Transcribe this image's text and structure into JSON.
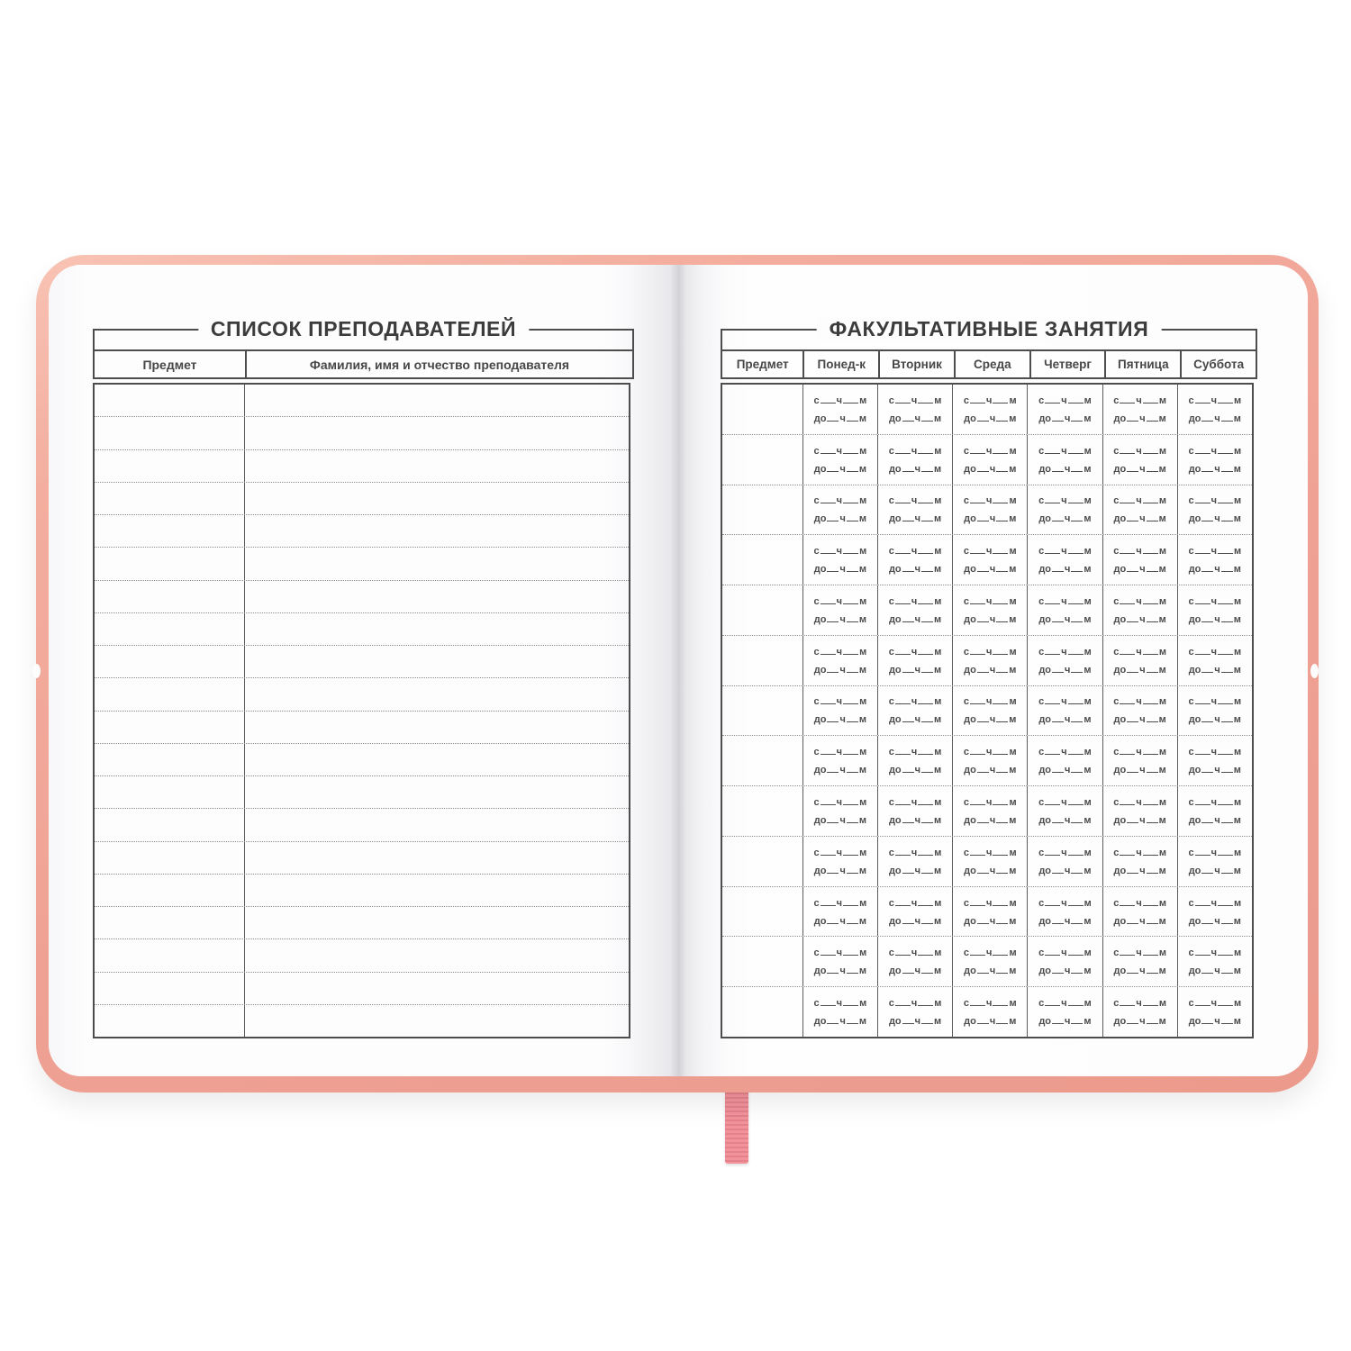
{
  "left_page": {
    "title": "СПИСОК ПРЕПОДАВАТЕЛЕЙ",
    "columns": [
      "Предмет",
      "Фамилия, имя и отчество преподавателя"
    ],
    "row_count": 20,
    "rows_content": ""
  },
  "right_page": {
    "title": "ФАКУЛЬТАТИВНЫЕ ЗАНЯТИЯ",
    "columns": [
      "Предмет",
      "Понед-к",
      "Вторник",
      "Среда",
      "Четверг",
      "Пятница",
      "Суббота"
    ],
    "day_column_count": 6,
    "row_count": 13,
    "cell_template": {
      "from_label": "с",
      "to_label": "до",
      "hours_label": "ч",
      "minutes_label": "м"
    }
  },
  "colors": {
    "cover_pink": "#efa294",
    "ribbon_pink": "#f2939c",
    "page_white": "#fdfdfe",
    "line_dark": "#4d4d4d",
    "line_dotted": "#8e8e8e",
    "text": "#3f3f3f"
  }
}
